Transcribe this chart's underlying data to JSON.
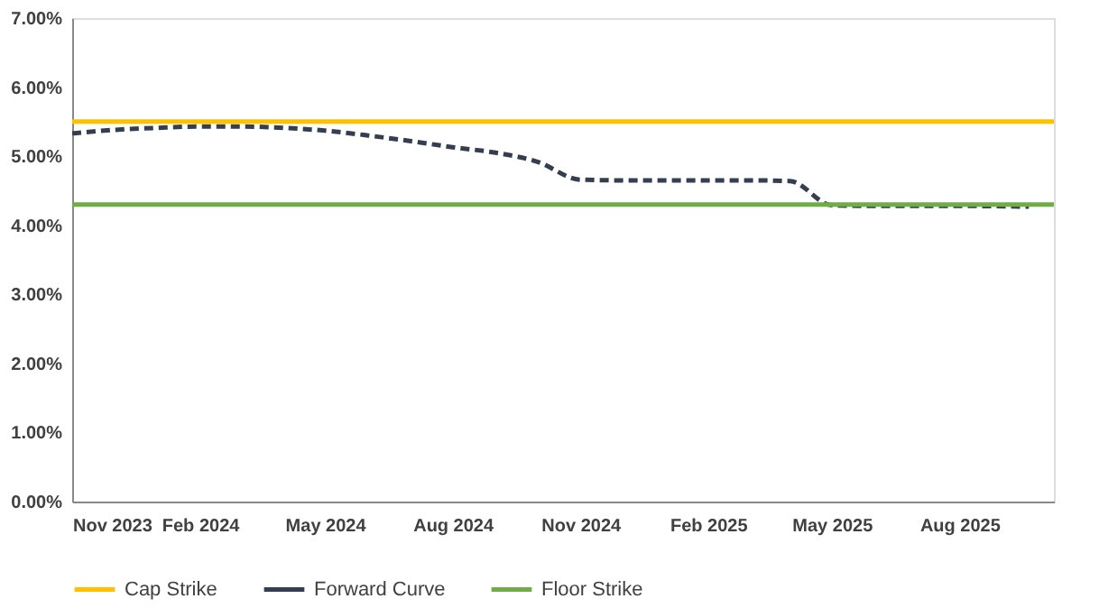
{
  "chart_data": {
    "type": "line",
    "series": [
      {
        "name": "Cap Strike",
        "color": "#ffc000",
        "line_style": "solid",
        "x": [
          "2023-11-01",
          "2025-10-08"
        ],
        "values": [
          5.5,
          5.5
        ]
      },
      {
        "name": "Forward Curve",
        "color": "#333f50",
        "line_style": "dashed",
        "x": [
          "2023-11-01",
          "2023-12-01",
          "2024-01-01",
          "2024-02-01",
          "2024-03-01",
          "2024-04-01",
          "2024-05-01",
          "2024-06-01",
          "2024-07-01",
          "2024-08-01",
          "2024-09-01",
          "2024-10-01",
          "2024-11-01",
          "2024-12-01",
          "2025-01-01",
          "2025-02-01",
          "2025-03-01",
          "2025-04-01",
          "2025-05-01",
          "2025-06-01",
          "2025-07-01",
          "2025-08-01",
          "2025-09-20"
        ],
        "values": [
          5.33,
          5.38,
          5.41,
          5.43,
          5.43,
          5.41,
          5.37,
          5.3,
          5.22,
          5.13,
          5.05,
          4.92,
          4.66,
          4.65,
          4.65,
          4.65,
          4.65,
          4.64,
          4.29,
          4.28,
          4.28,
          4.28,
          4.27
        ]
      },
      {
        "name": "Floor Strike",
        "color": "#70ad47",
        "line_style": "solid",
        "x": [
          "2023-11-01",
          "2025-10-08"
        ],
        "values": [
          4.3,
          4.3
        ]
      }
    ],
    "xlim": [
      "2023-11-01",
      "2025-10-08"
    ],
    "xticks": [
      {
        "value": "2023-11-01",
        "label": "Nov 2023"
      },
      {
        "value": "2024-02-01",
        "label": "Feb 2024"
      },
      {
        "value": "2024-05-01",
        "label": "May 2024"
      },
      {
        "value": "2024-08-01",
        "label": "Aug 2024"
      },
      {
        "value": "2024-11-01",
        "label": "Nov 2024"
      },
      {
        "value": "2025-02-01",
        "label": "Feb 2025"
      },
      {
        "value": "2025-05-01",
        "label": "May 2025"
      },
      {
        "value": "2025-08-01",
        "label": "Aug 2025"
      }
    ],
    "ylim": [
      0,
      7
    ],
    "yticks": [
      {
        "value": 0,
        "label": "0.00%"
      },
      {
        "value": 1,
        "label": "1.00%"
      },
      {
        "value": 2,
        "label": "2.00%"
      },
      {
        "value": 3,
        "label": "3.00%"
      },
      {
        "value": 4,
        "label": "4.00%"
      },
      {
        "value": 5,
        "label": "5.00%"
      },
      {
        "value": 6,
        "label": "6.00%"
      },
      {
        "value": 7,
        "label": "7.00%"
      }
    ],
    "grid": false,
    "legend": "bottom",
    "marker": "none"
  }
}
